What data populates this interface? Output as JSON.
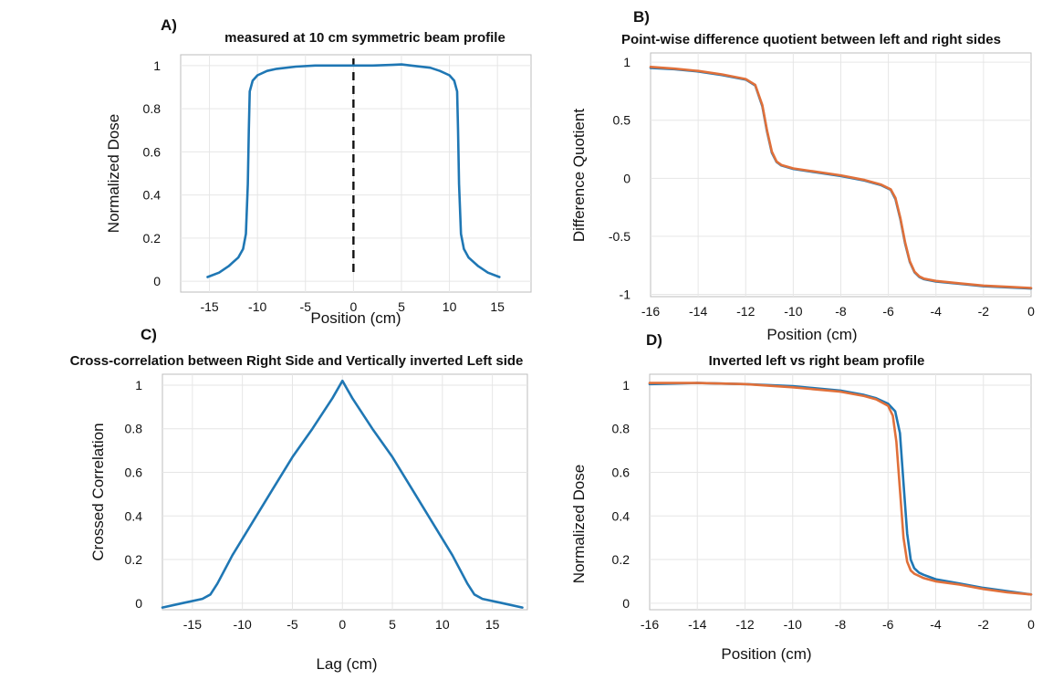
{
  "colors": {
    "blue": "#1f77b4",
    "orange": "#e0703a"
  },
  "chart_data": [
    {
      "panel": "A)",
      "type": "line",
      "title": "measured at 10 cm symmetric beam profile",
      "xlabel": "Position (cm)",
      "ylabel": "Normalized Dose",
      "xlim": [
        -18,
        18.5
      ],
      "ylim": [
        -0.05,
        1.05
      ],
      "xticks": [
        -15,
        -10,
        -5,
        0,
        5,
        10,
        15
      ],
      "yticks": [
        0,
        0.2,
        0.4,
        0.6,
        0.8,
        1
      ],
      "ytick_labels": [
        "0",
        "0.2",
        "0.4",
        "0.6",
        "0.8",
        "1"
      ],
      "grid": true,
      "reference_line": {
        "x": 0,
        "style": "dashed"
      },
      "series": [
        {
          "color": "#1f77b4",
          "x": [
            -15.2,
            -14,
            -13,
            -12,
            -11.5,
            -11.2,
            -11.0,
            -10.9,
            -10.8,
            -10.5,
            -10,
            -9,
            -8,
            -6,
            -4,
            -2,
            0,
            2,
            4,
            5,
            6,
            8,
            9,
            10,
            10.5,
            10.8,
            10.9,
            11.0,
            11.2,
            11.5,
            12,
            13,
            14,
            15.2
          ],
          "y": [
            0.02,
            0.04,
            0.07,
            0.11,
            0.15,
            0.22,
            0.45,
            0.7,
            0.88,
            0.93,
            0.955,
            0.975,
            0.985,
            0.995,
            1.0,
            1.0,
            1.0,
            1.0,
            1.003,
            1.005,
            1.0,
            0.99,
            0.975,
            0.955,
            0.93,
            0.88,
            0.7,
            0.45,
            0.22,
            0.15,
            0.11,
            0.07,
            0.04,
            0.02
          ]
        }
      ]
    },
    {
      "panel": "B)",
      "type": "line",
      "title": "Point-wise difference quotient between left and right sides",
      "xlabel": "Position (cm)",
      "ylabel": "Difference Quotient",
      "xlim": [
        -16,
        0
      ],
      "ylim": [
        -1.02,
        1.08
      ],
      "xticks": [
        -16,
        -14,
        -12,
        -10,
        -8,
        -6,
        -4,
        -2,
        0
      ],
      "yticks": [
        -1,
        -0.5,
        0,
        0.5,
        1
      ],
      "ytick_labels": [
        "-1",
        "-0.5",
        "0",
        "0.5",
        "1"
      ],
      "grid": true,
      "series": [
        {
          "color": "#1f77b4",
          "x": [
            -16,
            -15,
            -14,
            -13,
            -12,
            -11.6,
            -11.3,
            -11.1,
            -10.9,
            -10.7,
            -10.5,
            -10,
            -9,
            -8,
            -7,
            -6.3,
            -5.9,
            -5.7,
            -5.5,
            -5.3,
            -5.1,
            -4.9,
            -4.7,
            -4.5,
            -4,
            -3,
            -2,
            -1,
            0
          ],
          "y": [
            0.95,
            0.94,
            0.92,
            0.89,
            0.85,
            0.8,
            0.62,
            0.4,
            0.22,
            0.14,
            0.11,
            0.08,
            0.05,
            0.02,
            -0.02,
            -0.06,
            -0.1,
            -0.18,
            -0.35,
            -0.56,
            -0.72,
            -0.81,
            -0.85,
            -0.87,
            -0.89,
            -0.91,
            -0.93,
            -0.94,
            -0.95
          ]
        },
        {
          "color": "#e0703a",
          "x": [
            -16,
            -15,
            -14,
            -13,
            -12,
            -11.6,
            -11.3,
            -11.1,
            -10.9,
            -10.7,
            -10.5,
            -10,
            -9,
            -8,
            -7,
            -6.3,
            -5.9,
            -5.7,
            -5.5,
            -5.3,
            -5.1,
            -4.9,
            -4.7,
            -4.5,
            -4,
            -3,
            -2,
            -1,
            0
          ],
          "y": [
            0.96,
            0.945,
            0.925,
            0.895,
            0.855,
            0.805,
            0.63,
            0.41,
            0.23,
            0.145,
            0.115,
            0.085,
            0.055,
            0.025,
            -0.015,
            -0.055,
            -0.095,
            -0.17,
            -0.34,
            -0.55,
            -0.715,
            -0.805,
            -0.845,
            -0.865,
            -0.885,
            -0.905,
            -0.925,
            -0.935,
            -0.945
          ]
        }
      ]
    },
    {
      "panel": "C)",
      "type": "line",
      "title": "Cross-correlation between Right Side and Vertically inverted Left side",
      "xlabel": "Lag (cm)",
      "ylabel": "Crossed Correlation",
      "xlim": [
        -18,
        18.5
      ],
      "ylim": [
        -0.03,
        1.05
      ],
      "xticks": [
        -15,
        -10,
        -5,
        0,
        5,
        10,
        15
      ],
      "yticks": [
        0,
        0.2,
        0.4,
        0.6,
        0.8,
        1
      ],
      "ytick_labels": [
        "0",
        "0.2",
        "0.4",
        "0.6",
        "0.8",
        "1"
      ],
      "grid": true,
      "series": [
        {
          "color": "#1f77b4",
          "x": [
            -18,
            -16,
            -14,
            -13.2,
            -12.5,
            -11,
            -9,
            -7,
            -5,
            -3,
            -1,
            0,
            1,
            3,
            5,
            7,
            9,
            11,
            12.5,
            13.2,
            14,
            16,
            18
          ],
          "y": [
            -0.02,
            0.0,
            0.02,
            0.04,
            0.09,
            0.22,
            0.37,
            0.52,
            0.67,
            0.8,
            0.94,
            1.02,
            0.94,
            0.8,
            0.67,
            0.52,
            0.37,
            0.22,
            0.09,
            0.04,
            0.02,
            0.0,
            -0.02
          ]
        }
      ]
    },
    {
      "panel": "D)",
      "type": "line",
      "title": "Inverted left vs right beam profile",
      "xlabel": "Position (cm)",
      "ylabel": "Normalized Dose",
      "xlim": [
        -16,
        0
      ],
      "ylim": [
        -0.03,
        1.05
      ],
      "xticks": [
        -16,
        -14,
        -12,
        -10,
        -8,
        -6,
        -4,
        -2,
        0
      ],
      "yticks": [
        0,
        0.2,
        0.4,
        0.6,
        0.8,
        1
      ],
      "ytick_labels": [
        "0",
        "0.2",
        "0.4",
        "0.6",
        "0.8",
        "1"
      ],
      "grid": true,
      "series": [
        {
          "color": "#1f77b4",
          "x": [
            -16,
            -14,
            -12,
            -10,
            -8,
            -7,
            -6.5,
            -6,
            -5.7,
            -5.5,
            -5.35,
            -5.2,
            -5.05,
            -4.9,
            -4.7,
            -4.5,
            -4,
            -3,
            -2,
            -1,
            0
          ],
          "y": [
            1.005,
            1.01,
            1.005,
            0.995,
            0.975,
            0.955,
            0.94,
            0.915,
            0.88,
            0.78,
            0.55,
            0.32,
            0.2,
            0.16,
            0.14,
            0.13,
            0.11,
            0.09,
            0.07,
            0.055,
            0.04
          ]
        },
        {
          "color": "#e0703a",
          "x": [
            -16,
            -14,
            -12,
            -10,
            -8,
            -7,
            -6.5,
            -6,
            -5.8,
            -5.65,
            -5.5,
            -5.35,
            -5.2,
            -5.05,
            -4.9,
            -4.7,
            -4.5,
            -4,
            -3,
            -2,
            -1,
            0
          ],
          "y": [
            1.01,
            1.01,
            1.005,
            0.99,
            0.97,
            0.95,
            0.935,
            0.905,
            0.86,
            0.74,
            0.52,
            0.3,
            0.19,
            0.15,
            0.135,
            0.125,
            0.115,
            0.1,
            0.085,
            0.065,
            0.05,
            0.04
          ]
        }
      ]
    }
  ]
}
